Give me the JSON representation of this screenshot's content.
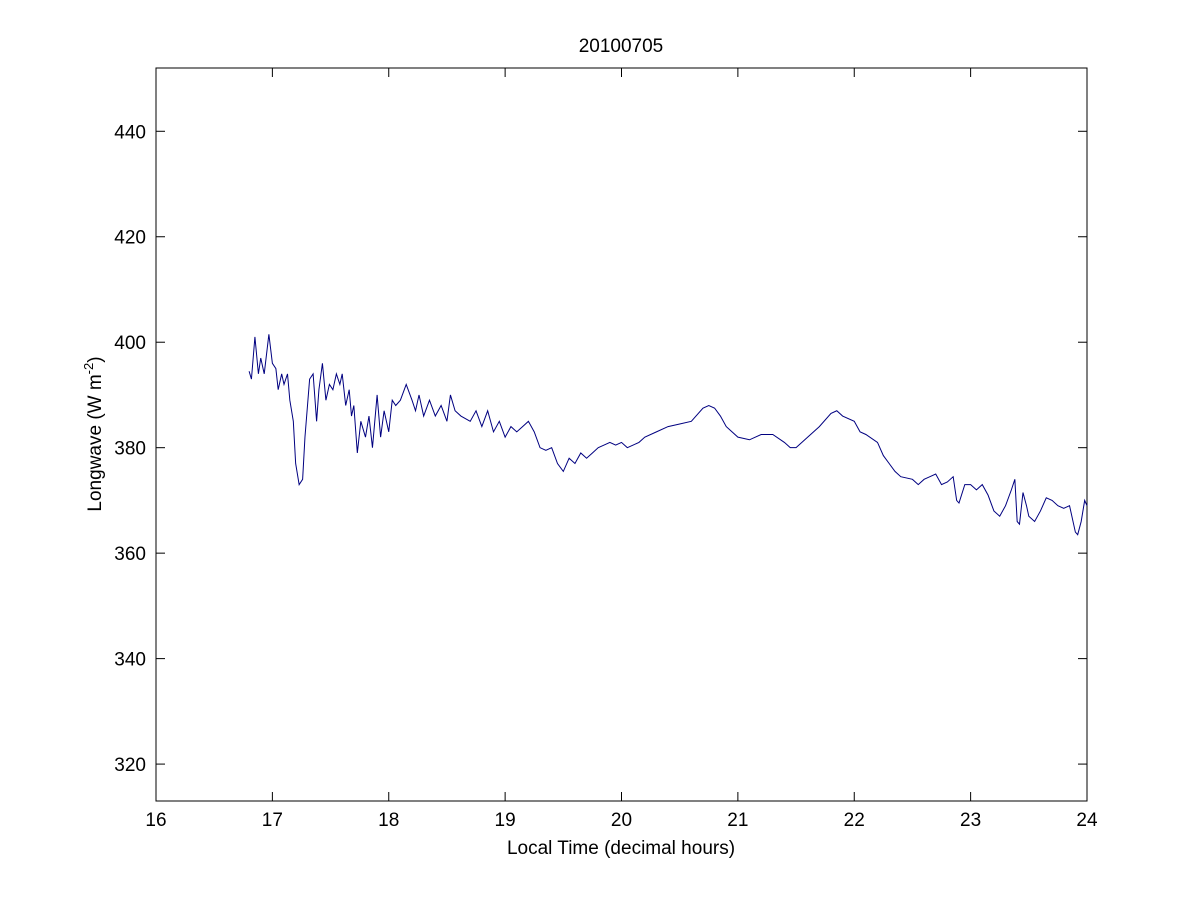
{
  "chart_data": {
    "type": "line",
    "title": "20100705",
    "x_label": "Local Time (decimal hours)",
    "y_label": {
      "text": "Longwave (W m",
      "superscript": "-2",
      "suffix": ")"
    },
    "xlim": [
      16,
      24
    ],
    "xticks": [
      16,
      17,
      18,
      19,
      20,
      21,
      22,
      23,
      24
    ],
    "ylim": [
      313,
      452
    ],
    "yticks": [
      320,
      340,
      360,
      380,
      400,
      420,
      440
    ],
    "grid": false,
    "series": [
      {
        "color": "#000080",
        "x": [
          16.8,
          16.82,
          16.85,
          16.88,
          16.9,
          16.93,
          16.97,
          17.0,
          17.03,
          17.05,
          17.08,
          17.1,
          17.13,
          17.15,
          17.18,
          17.2,
          17.23,
          17.26,
          17.28,
          17.32,
          17.35,
          17.38,
          17.4,
          17.43,
          17.46,
          17.49,
          17.52,
          17.55,
          17.58,
          17.6,
          17.63,
          17.66,
          17.68,
          17.7,
          17.73,
          17.76,
          17.8,
          17.83,
          17.86,
          17.9,
          17.93,
          17.96,
          18.0,
          18.03,
          18.06,
          18.1,
          18.15,
          18.2,
          18.23,
          18.26,
          18.3,
          18.35,
          18.4,
          18.45,
          18.5,
          18.53,
          18.57,
          18.62,
          18.7,
          18.75,
          18.8,
          18.85,
          18.9,
          18.95,
          19.0,
          19.05,
          19.1,
          19.15,
          19.2,
          19.25,
          19.3,
          19.35,
          19.4,
          19.45,
          19.5,
          19.55,
          19.6,
          19.65,
          19.7,
          19.75,
          19.8,
          19.85,
          19.9,
          19.95,
          20.0,
          20.05,
          20.1,
          20.15,
          20.2,
          20.3,
          20.4,
          20.5,
          20.6,
          20.7,
          20.75,
          20.8,
          20.85,
          20.9,
          20.95,
          21.0,
          21.1,
          21.2,
          21.3,
          21.4,
          21.45,
          21.5,
          21.55,
          21.6,
          21.7,
          21.8,
          21.85,
          21.9,
          22.0,
          22.05,
          22.1,
          22.2,
          22.25,
          22.3,
          22.35,
          22.4,
          22.5,
          22.55,
          22.6,
          22.65,
          22.7,
          22.75,
          22.8,
          22.85,
          22.88,
          22.9,
          22.95,
          23.0,
          23.05,
          23.1,
          23.15,
          23.2,
          23.25,
          23.3,
          23.35,
          23.38,
          23.4,
          23.42,
          23.45,
          23.48,
          23.5,
          23.55,
          23.6,
          23.65,
          23.7,
          23.75,
          23.8,
          23.85,
          23.9,
          23.92,
          23.95,
          23.98,
          24.0
        ],
        "values": [
          394.5,
          393,
          401,
          394,
          397,
          394,
          401.5,
          396,
          395,
          391,
          394,
          392,
          394,
          389,
          385,
          377,
          373,
          374,
          382,
          393,
          394,
          385,
          391,
          396,
          389,
          392,
          391,
          394,
          392,
          394,
          388,
          391,
          386,
          388,
          379,
          385,
          382,
          386,
          380,
          390,
          382,
          387,
          383,
          389,
          388,
          389,
          392,
          389,
          387,
          390,
          386,
          389,
          386,
          388,
          385,
          390,
          387,
          386,
          385,
          387,
          384,
          387,
          383,
          385,
          382,
          384,
          383,
          384,
          385,
          383,
          380,
          379.5,
          380,
          377,
          375.5,
          378,
          377,
          379,
          378,
          379,
          380,
          380.5,
          381,
          380.5,
          381,
          380,
          380.5,
          381,
          382,
          383,
          384,
          384.5,
          385,
          387.5,
          388,
          387.5,
          386,
          384,
          383,
          382,
          381.5,
          382.5,
          382.5,
          381,
          380,
          380,
          381,
          382,
          384,
          386.5,
          387,
          386,
          385,
          383,
          382.5,
          381,
          378.5,
          377,
          375.5,
          374.5,
          374,
          373,
          374,
          374.5,
          375,
          373,
          373.5,
          374.5,
          370,
          369.5,
          373,
          373,
          372,
          373,
          371,
          368,
          367,
          369,
          372,
          374,
          366,
          365.5,
          371.5,
          369,
          367,
          366,
          368,
          370.5,
          370,
          369,
          368.5,
          369,
          364,
          363.5,
          366,
          370,
          369
        ]
      }
    ]
  }
}
